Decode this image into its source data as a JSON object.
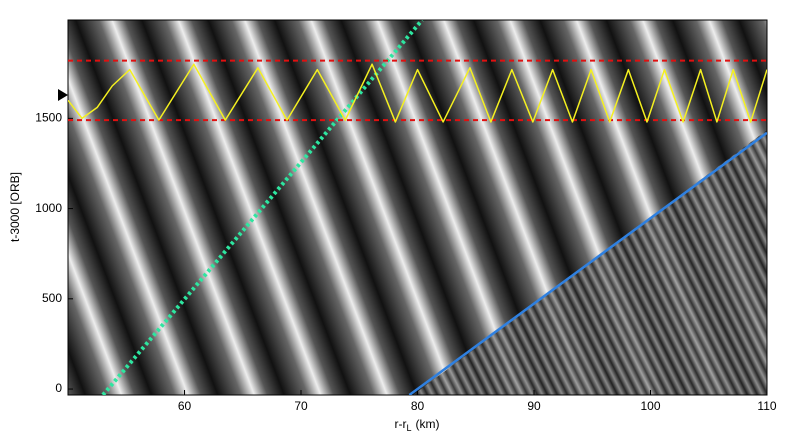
{
  "chart_data": {
    "type": "line",
    "xlabel": {
      "main": "r-r",
      "sub": "L",
      "tail": "(km)"
    },
    "ylabel": "t-3000 [ORB]",
    "xlim": [
      50,
      110
    ],
    "xticks": [
      60,
      70,
      80,
      90,
      100,
      110
    ],
    "ylim": [
      -33,
      2045
    ],
    "yticks": [
      0,
      500,
      1000,
      1500
    ],
    "series": [
      {
        "color": "#2ee6a0",
        "dash": "dotted",
        "width": 4,
        "x": [
          53.0,
          80.4
        ],
        "values": [
          -33,
          2045
        ]
      },
      {
        "color": "#2f80e0",
        "dash": "solid",
        "width": 2.5,
        "x": [
          79.3,
          110
        ],
        "values": [
          -33,
          1420
        ]
      },
      {
        "color": "#e01010",
        "dash": "dashed",
        "width": 2,
        "x": [
          50,
          110
        ],
        "values": [
          1820,
          1820
        ]
      },
      {
        "color": "#e01010",
        "dash": "dashed",
        "width": 2,
        "x": [
          50,
          110
        ],
        "values": [
          1490,
          1490
        ]
      },
      {
        "color": "#f4f020",
        "dash": "solid",
        "width": 1.5,
        "x": [
          50,
          51.2,
          52.5,
          53.8,
          55.3,
          57.8,
          60.8,
          63.5,
          66.3,
          68.8,
          71.4,
          73.8,
          76.1,
          78.1,
          80,
          82.2,
          84.5,
          86.3,
          88.1,
          89.9,
          91.6,
          93.3,
          94.9,
          96.5,
          98.1,
          99.7,
          101.2,
          102.8,
          104.3,
          105.7,
          107.1,
          108.6,
          110
        ],
        "values": [
          1600,
          1500,
          1560,
          1680,
          1770,
          1490,
          1800,
          1490,
          1780,
          1490,
          1770,
          1490,
          1800,
          1480,
          1770,
          1480,
          1780,
          1480,
          1770,
          1480,
          1770,
          1480,
          1770,
          1480,
          1770,
          1480,
          1770,
          1480,
          1770,
          1480,
          1770,
          1480,
          1770
        ]
      }
    ]
  }
}
